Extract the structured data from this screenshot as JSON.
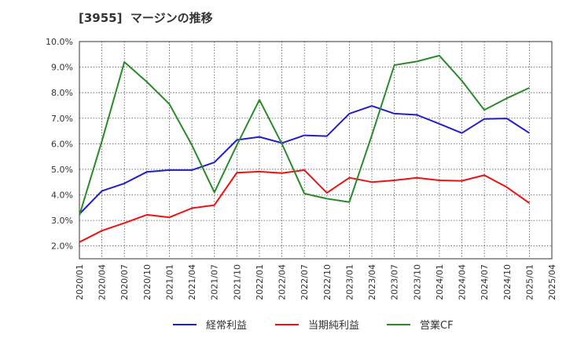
{
  "chart_data": {
    "type": "line",
    "title": "[3955]  マージンの推移",
    "x": [
      "2020/01",
      "2020/04",
      "2020/07",
      "2020/10",
      "2021/01",
      "2021/04",
      "2021/07",
      "2021/10",
      "2022/01",
      "2022/04",
      "2022/07",
      "2022/10",
      "2023/01",
      "2023/04",
      "2023/07",
      "2023/10",
      "2024/01",
      "2024/04",
      "2024/07",
      "2024/10",
      "2025/01",
      "2025/04"
    ],
    "ylim": [
      1.5,
      10.0
    ],
    "yticks": [
      2.0,
      3.0,
      4.0,
      5.0,
      6.0,
      7.0,
      8.0,
      9.0,
      10.0
    ],
    "ytick_labels": [
      "2.0%",
      "3.0%",
      "4.0%",
      "5.0%",
      "6.0%",
      "7.0%",
      "8.0%",
      "9.0%",
      "10.0%"
    ],
    "grid": true,
    "legend_position": "bottom",
    "series": [
      {
        "name": "経常利益",
        "color": "#1f1fcc",
        "values": [
          3.25,
          4.15,
          4.45,
          4.9,
          4.97,
          4.97,
          5.27,
          6.15,
          6.27,
          6.03,
          6.33,
          6.3,
          7.18,
          7.48,
          7.18,
          7.13,
          6.78,
          6.42,
          6.97,
          6.99,
          6.42,
          null
        ]
      },
      {
        "name": "当期純利益",
        "color": "#ee1111",
        "values": [
          2.15,
          2.6,
          2.9,
          3.22,
          3.12,
          3.48,
          3.6,
          4.87,
          4.91,
          4.85,
          4.97,
          4.08,
          4.67,
          4.5,
          4.57,
          4.67,
          4.57,
          4.55,
          4.77,
          4.3,
          3.68,
          null
        ]
      },
      {
        "name": "営業CF",
        "color": "#2a8a2a",
        "values": [
          3.2,
          6.1,
          9.2,
          8.42,
          7.55,
          5.95,
          4.1,
          5.95,
          7.72,
          6.0,
          4.05,
          3.85,
          3.72,
          6.33,
          9.08,
          9.22,
          9.45,
          8.47,
          7.32,
          7.78,
          8.19,
          null
        ]
      }
    ]
  }
}
